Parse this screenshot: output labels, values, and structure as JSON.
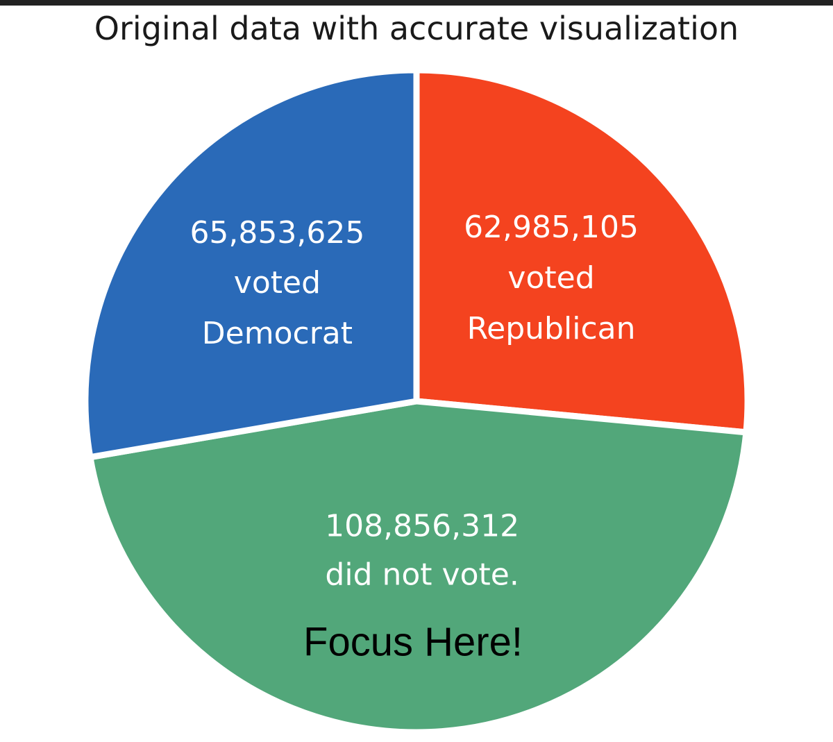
{
  "chart_data": {
    "type": "pie",
    "title": "Original data with accurate visualization",
    "categories": [
      "voted Republican",
      "did not vote.",
      "voted Democrat"
    ],
    "values": [
      62985105,
      108856312,
      65853625
    ],
    "value_labels": [
      "62,985,105",
      "108,856,312",
      "65,853,625"
    ],
    "colors": [
      "#f4431f",
      "#52a77a",
      "#2a6ab8"
    ],
    "annotation": "Focus Here!"
  }
}
